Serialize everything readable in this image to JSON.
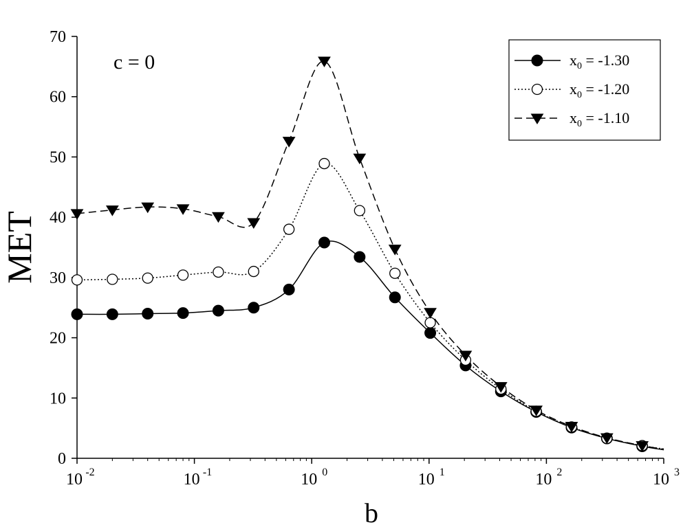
{
  "chart_data": {
    "type": "line",
    "title": "",
    "xlabel": "b",
    "ylabel": "MET",
    "annotation": "c = 0",
    "x_scale": "log",
    "xlim": [
      0.01,
      1000
    ],
    "ylim": [
      0,
      70
    ],
    "yticks": [
      0,
      10,
      20,
      30,
      40,
      50,
      60,
      70
    ],
    "xticks": [
      {
        "value": 0.01,
        "base": "10",
        "exp": "-2"
      },
      {
        "value": 0.1,
        "base": "10",
        "exp": "-1"
      },
      {
        "value": 1,
        "base": "10",
        "exp": "0"
      },
      {
        "value": 10,
        "base": "10",
        "exp": "1"
      },
      {
        "value": 100,
        "base": "10",
        "exp": "2"
      },
      {
        "value": 1000,
        "base": "10",
        "exp": "3"
      }
    ],
    "grid": false,
    "legend_position": "top-right",
    "x": [
      0.01,
      0.02,
      0.04,
      0.08,
      0.16,
      0.32,
      0.64,
      1.28,
      2.56,
      5.12,
      10.24,
      20.48,
      40.96,
      81.92,
      163.84,
      327.68,
      655.36
    ],
    "series": [
      {
        "legend_base": "x",
        "legend_sub": "0",
        "legend_rest": " = -1.30",
        "marker": "filled-circle",
        "line": "solid",
        "values": [
          23.9,
          23.9,
          24.0,
          24.1,
          24.5,
          25.0,
          28.0,
          35.8,
          33.4,
          26.7,
          20.8,
          15.4,
          11.1,
          7.7,
          5.1,
          3.3,
          2.0
        ]
      },
      {
        "legend_base": "x",
        "legend_sub": "0",
        "legend_rest": " = -1.20",
        "marker": "open-circle",
        "line": "dotted",
        "values": [
          29.6,
          29.7,
          29.9,
          30.4,
          30.9,
          31.0,
          38.0,
          48.9,
          41.1,
          30.7,
          22.5,
          16.3,
          11.5,
          7.8,
          5.2,
          3.3,
          2.1
        ]
      },
      {
        "legend_base": "x",
        "legend_sub": "0",
        "legend_rest": " = -1.10",
        "marker": "triangle-down",
        "line": "dashed",
        "values": [
          40.6,
          41.2,
          41.7,
          41.4,
          40.1,
          39.1,
          52.6,
          65.9,
          49.8,
          34.7,
          24.2,
          17.1,
          11.9,
          8.0,
          5.3,
          3.4,
          2.1
        ]
      }
    ]
  }
}
